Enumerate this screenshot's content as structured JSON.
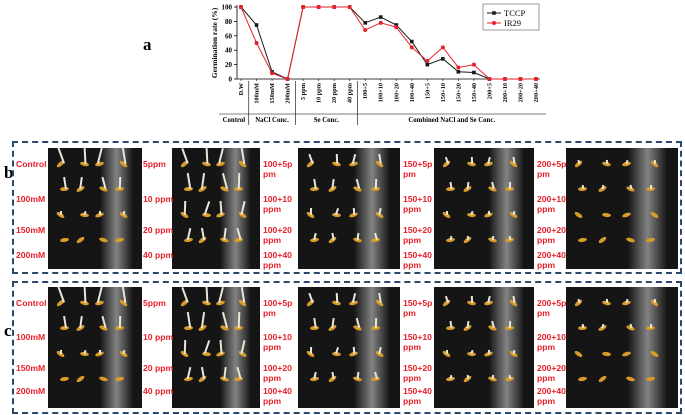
{
  "panel_a": {
    "letter": "a",
    "chart_data": {
      "type": "line",
      "ylabel": "Germination rate (%)",
      "ylim": [
        0,
        100
      ],
      "yticks": [
        0,
        20,
        40,
        60,
        80,
        100
      ],
      "categories": [
        "D.W",
        "100mM",
        "150mM",
        "200mM",
        "5 ppm",
        "10 ppm",
        "20 ppm",
        "40 ppm",
        "100+5",
        "100+10",
        "100+20",
        "100+40",
        "150+5",
        "150+10",
        "150+20",
        "150+40",
        "200+5",
        "200+10",
        "200+20",
        "200+40"
      ],
      "groups": [
        {
          "label": "Control",
          "from": 0,
          "to": 0
        },
        {
          "label": "NaCl Conc.",
          "from": 1,
          "to": 3
        },
        {
          "label": "Se Conc.",
          "from": 4,
          "to": 7
        },
        {
          "label": "Combined NaCl and Se Conc.",
          "from": 8,
          "to": 19
        }
      ],
      "series": [
        {
          "name": "TCCP",
          "color": "#1a1a1a",
          "marker": "square",
          "values": [
            100,
            75,
            10,
            0,
            100,
            100,
            100,
            100,
            78,
            86,
            75,
            52,
            20,
            28,
            10,
            9,
            0,
            0,
            0,
            0
          ]
        },
        {
          "name": "IR29",
          "color": "#e8202a",
          "marker": "circle",
          "values": [
            100,
            50,
            8,
            0,
            100,
            100,
            100,
            100,
            68,
            78,
            72,
            44,
            25,
            44,
            16,
            20,
            0,
            0,
            0,
            0
          ]
        }
      ]
    }
  },
  "panel_b": {
    "letter": "b",
    "groups": [
      {
        "left": [
          "Control",
          "100mM",
          "150mM",
          "200mM"
        ],
        "right": [
          "5ppm",
          "10 ppm",
          "20 ppm",
          "40 ppm"
        ]
      },
      {
        "right": [
          "100+5p\npm",
          "100+10\nppm",
          "100+20\nppm",
          "100+40\nppm"
        ]
      },
      {
        "right": [
          "150+5p\npm",
          "150+10\nppm",
          "150+20\nppm",
          "150+40\nppm"
        ]
      },
      {
        "right": [
          "200+5p\npm",
          "200+10\nppm",
          "200+20\nppm",
          "200+40\nppm"
        ]
      }
    ]
  },
  "panel_c": {
    "letter": "c",
    "groups": [
      {
        "left": [
          "Control",
          "100mM",
          "150mM",
          "200mM"
        ],
        "right": [
          "5ppm",
          "10 ppm",
          "20 ppm",
          "40 ppm"
        ]
      },
      {
        "right": [
          "100+5p\npm",
          "100+10\nppm",
          "100+20\nppm",
          "100+40\nppm"
        ]
      },
      {
        "right": [
          "150+5p\npm",
          "150+10\nppm",
          "150+20\nppm",
          "150+40\nppm"
        ]
      },
      {
        "right": [
          "200+5p\npm",
          "200+10\nppm",
          "200+20\nppm",
          "200+40\nppm"
        ]
      }
    ]
  }
}
